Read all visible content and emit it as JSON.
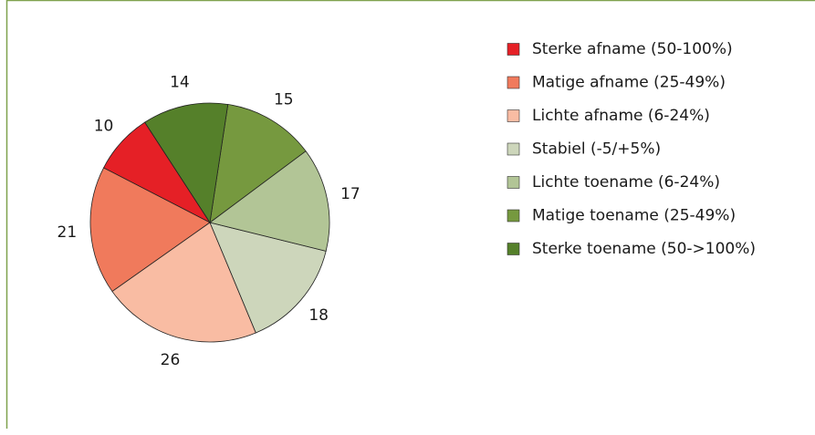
{
  "chart_data": {
    "type": "pie",
    "categories": [
      "Sterke afname (50-100%)",
      "Matige afname (25-49%)",
      "Lichte afname (6-24%)",
      "Stabiel (-5/+5%)",
      "Lichte toename (6-24%)",
      "Matige toename (25-49%)",
      "Sterke toename (50->100%)"
    ],
    "values": [
      10,
      21,
      26,
      18,
      17,
      15,
      14
    ],
    "colors": [
      "#e52026",
      "#f07a5c",
      "#f9bca3",
      "#cdd6bb",
      "#b2c596",
      "#76993f",
      "#55802a"
    ],
    "legend": "right"
  }
}
